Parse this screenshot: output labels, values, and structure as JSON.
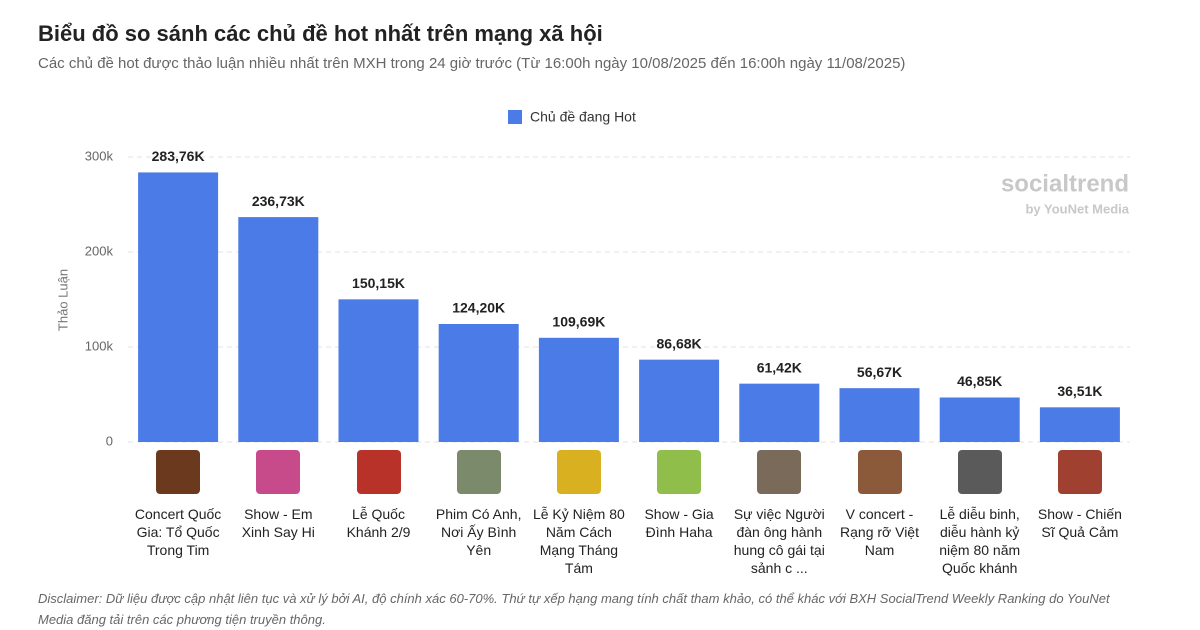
{
  "chart_data": {
    "type": "bar",
    "title": "Biểu đồ so sánh các chủ đề hot nhất trên mạng xã hội",
    "subtitle": "Các chủ đề hot được thảo luận nhiều nhất trên MXH trong 24 giờ trước (Từ 16:00h ngày 10/08/2025 đến 16:00h ngày 11/08/2025)",
    "y_label": "Thảo Luận",
    "watermark": "socialtrend",
    "watermark_sub": "by YouNet Media",
    "disclaimer": "Disclaimer: Dữ liệu được cập nhật liên tục và xử lý bởi AI, độ chính xác 60-70%. Thứ tự xếp hạng mang tính chất tham khảo, có thể khác với BXH SocialTrend Weekly Ranking do YouNet Media đăng tải trên các phương tiện truyền thông.",
    "categories": [
      "Concert Quốc Gia: Tổ Quốc Trong Tim",
      "Show - Em Xinh Say Hi",
      "Lễ Quốc Khánh 2/9",
      "Phim Có Anh, Nơi Ấy Bình Yên",
      "Lễ Kỷ Niệm 80 Năm Cách Mạng Tháng Tám",
      "Show - Gia Đình Haha",
      "Sự việc Người đàn ông hành hung cô gái tại sảnh c ...",
      "V concert - Rạng rỡ Việt Nam",
      "Lễ diễu binh, diễu hành kỷ niệm 80 năm Quốc khánh",
      "Show - Chiến Sĩ Quả Cảm"
    ],
    "series": [
      {
        "name": "Chủ đề đang Hot",
        "color": "#4a7be6",
        "values": [
          283760,
          236730,
          150150,
          124200,
          109690,
          86680,
          61420,
          56670,
          46850,
          36510
        ],
        "value_labels": [
          "283,76K",
          "236,73K",
          "150,15K",
          "124,20K",
          "109,69K",
          "86,68K",
          "61,42K",
          "56,67K",
          "46,85K",
          "36,51K"
        ]
      }
    ],
    "ylim": [
      0,
      300000
    ],
    "yticks": [
      0,
      {
        "value": 100000,
        "label": "100k"
      },
      {
        "value": 200000,
        "label": "200k"
      },
      {
        "value": 300000,
        "label": "300k"
      }
    ],
    "grid": true
  }
}
